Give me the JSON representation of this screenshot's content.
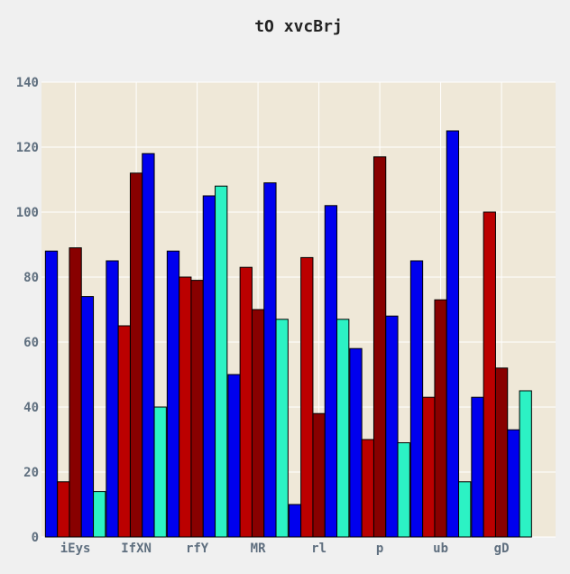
{
  "chart_data": {
    "type": "bar",
    "title": "tO xvcBrj",
    "xlabel": "",
    "ylabel": "",
    "categories": [
      "iEys",
      "IfXN",
      "rfY",
      "MR",
      "rl",
      "p",
      "ub",
      "gD"
    ],
    "ylim": [
      0,
      140
    ],
    "yticks": [
      0,
      20,
      40,
      60,
      80,
      100,
      120,
      140
    ],
    "grid": true,
    "legend": "none",
    "series": [
      {
        "color": "#0000ee",
        "values": [
          88,
          85,
          88,
          50,
          10,
          58,
          85,
          43
        ]
      },
      {
        "color": "#bb0000",
        "values": [
          17,
          65,
          80,
          83,
          86,
          30,
          43,
          100
        ]
      },
      {
        "color": "#880000",
        "values": [
          89,
          112,
          79,
          70,
          38,
          117,
          73,
          52
        ]
      },
      {
        "color": "#0000ee",
        "values": [
          74,
          118,
          105,
          109,
          102,
          68,
          125,
          33
        ]
      },
      {
        "color": "#2cf2c4",
        "values": [
          14,
          40,
          108,
          67,
          67,
          29,
          17,
          45
        ]
      }
    ],
    "colors": {
      "page_background": "#f0f0f0",
      "plot_background": "#efe8d8",
      "grid": "#ffffff",
      "tick_text": "#5f6f7f",
      "title_text": "#222222",
      "bar_edge": "#000000"
    }
  }
}
